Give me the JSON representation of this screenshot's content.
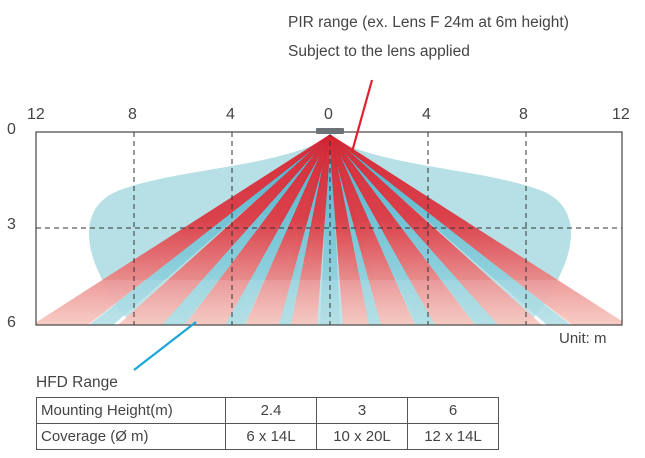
{
  "annotations": {
    "pir_line1": "PIR range (ex. Lens F 24m at 6m height)",
    "pir_line2": "Subject to the lens applied",
    "hfd_label": "HFD Range",
    "unit_label": "Unit: m"
  },
  "x_ticks": [
    "12",
    "8",
    "4",
    "0",
    "4",
    "8",
    "12"
  ],
  "y_ticks": [
    "0",
    "3",
    "6"
  ],
  "colors": {
    "pir_beam": "#d6222f",
    "pir_fade": "#f4b6ad",
    "hfd_fill": "#a9dbe0",
    "hfd_beam": "#3fb0cc",
    "pointer_pir": "#e02030",
    "pointer_hfd": "#1aa6d8",
    "sensor": "#6b7378"
  },
  "table": {
    "row1": {
      "header": "Mounting Height(m)",
      "values": [
        "2.4",
        "3",
        "6"
      ]
    },
    "row2": {
      "header": "Coverage (Ø m)",
      "values": [
        "6 x 14L",
        "10 x 20L",
        "12 x 14L"
      ]
    }
  }
}
